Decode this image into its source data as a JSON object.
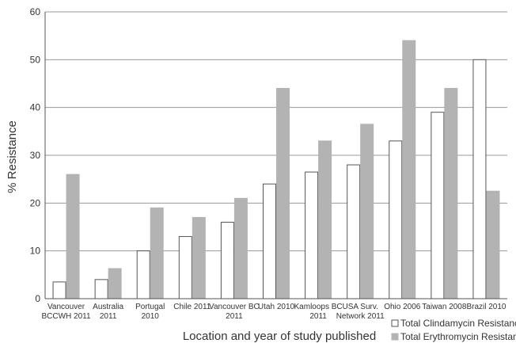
{
  "chart_data": {
    "type": "bar",
    "title": "",
    "xlabel": "Location and year of study published",
    "ylabel": "% Resistance",
    "ylim": [
      0,
      60
    ],
    "yticks": [
      0,
      10,
      20,
      30,
      40,
      50,
      60
    ],
    "grid": true,
    "legend_position": "bottom-right",
    "categories": [
      [
        "Vancouver",
        "BCCWH 2011"
      ],
      [
        "Australia",
        "2011"
      ],
      [
        "Portugal",
        "2010"
      ],
      [
        "Chile 2011"
      ],
      [
        "Vancouver BC",
        "2011"
      ],
      [
        "Utah 2010"
      ],
      [
        "Kamloops BC",
        "2011"
      ],
      [
        "USA Surv.",
        "Network 2011"
      ],
      [
        "Ohio 2006"
      ],
      [
        "Taiwan 2008"
      ],
      [
        "Brazil 2010"
      ]
    ],
    "series": [
      {
        "name": "Total Clindamycin Resistance",
        "color": "#ffffff",
        "stroke": "#555555",
        "values": [
          3.5,
          4,
          10,
          13,
          16,
          24,
          26.5,
          28,
          33,
          39,
          50
        ]
      },
      {
        "name": "Total Erythromycin Resistance",
        "color": "#b3b3b3",
        "stroke": "#b3b3b3",
        "values": [
          26,
          6.3,
          19,
          17,
          21,
          44,
          33,
          36.5,
          54,
          44,
          22.5
        ]
      }
    ]
  }
}
